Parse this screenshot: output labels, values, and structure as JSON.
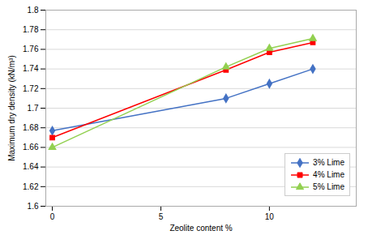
{
  "chart_data": {
    "type": "line",
    "x_label": "Zeolite content %",
    "y_label": "Maximum dry density (kN/m³)",
    "x": [
      0,
      8,
      10,
      12
    ],
    "series": [
      {
        "name": "3% Lime",
        "color": "#4472C4",
        "marker": "diamond",
        "values": [
          1.677,
          1.71,
          1.725,
          1.74
        ]
      },
      {
        "name": "4% Lime",
        "color": "#FF0000",
        "marker": "square",
        "values": [
          1.67,
          1.739,
          1.757,
          1.767
        ]
      },
      {
        "name": "5% Lime",
        "color": "#92D050",
        "marker": "triangle",
        "values": [
          1.66,
          1.742,
          1.761,
          1.771
        ]
      }
    ],
    "xlim": [
      -0.3,
      14
    ],
    "ylim": [
      1.6,
      1.8
    ],
    "xticks": [
      0,
      5,
      10
    ],
    "yticks": [
      1.6,
      1.62,
      1.64,
      1.66,
      1.68,
      1.7,
      1.72,
      1.74,
      1.76,
      1.78,
      1.8
    ],
    "grid": "y",
    "legend": "lower right"
  }
}
